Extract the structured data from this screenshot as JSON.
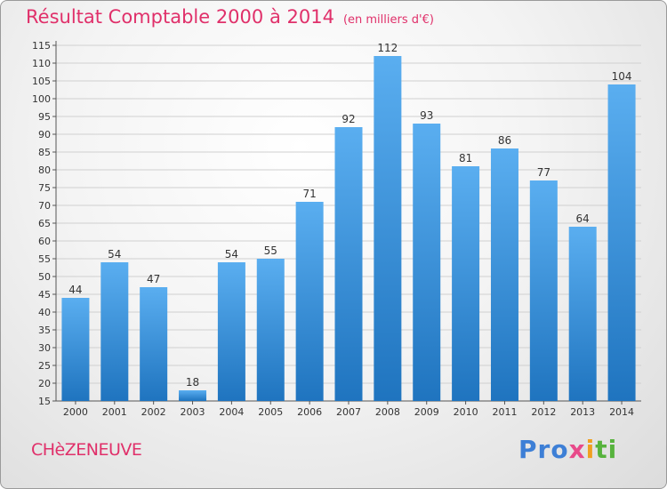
{
  "title": "Résultat Comptable 2000 à 2014",
  "subtitle": "(en milliers d'€)",
  "town": "CHèZENEUVE",
  "logo": {
    "p1": "Pro",
    "p2": "x",
    "p3": "i",
    "p4": "ti"
  },
  "colors": {
    "title": "#e0306a",
    "bar_light": "#5aaef0",
    "bar_dark": "#1f74bf",
    "grid": "#d0d0d0"
  },
  "chart_data": {
    "type": "bar",
    "title": "Résultat Comptable 2000 à 2014",
    "xlabel": "",
    "ylabel": "",
    "categories": [
      "2000",
      "2001",
      "2002",
      "2003",
      "2004",
      "2005",
      "2006",
      "2007",
      "2008",
      "2009",
      "2010",
      "2011",
      "2012",
      "2013",
      "2014"
    ],
    "values": [
      44,
      54,
      47,
      18,
      54,
      55,
      71,
      92,
      112,
      93,
      81,
      86,
      77,
      64,
      104
    ],
    "ylim": [
      15,
      115
    ],
    "ytick_step": 5,
    "grid": true,
    "legend": "none"
  }
}
